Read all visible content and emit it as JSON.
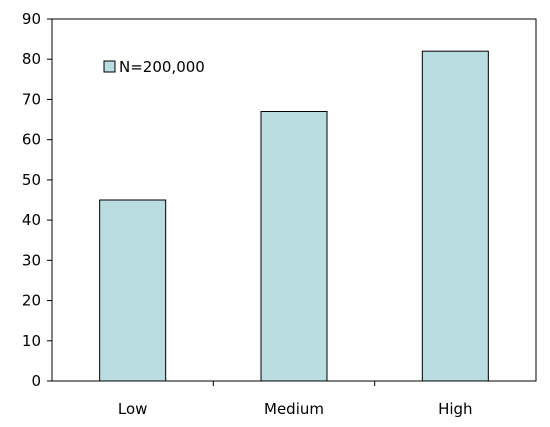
{
  "chart_data": {
    "type": "bar",
    "categories": [
      "Low",
      "Medium",
      "High"
    ],
    "series": [
      {
        "name": "N=200,000",
        "values": [
          45,
          67,
          82
        ]
      }
    ],
    "title": "",
    "xlabel": "",
    "ylabel": "",
    "ylim": [
      0,
      90
    ],
    "yticks": [
      0,
      10,
      20,
      30,
      40,
      50,
      60,
      70,
      80,
      90
    ],
    "grid": false,
    "legend_position": "top-left",
    "colors": {
      "bar_fill": "#b9dde1",
      "bar_stroke": "#000000",
      "axis": "#000000"
    }
  }
}
